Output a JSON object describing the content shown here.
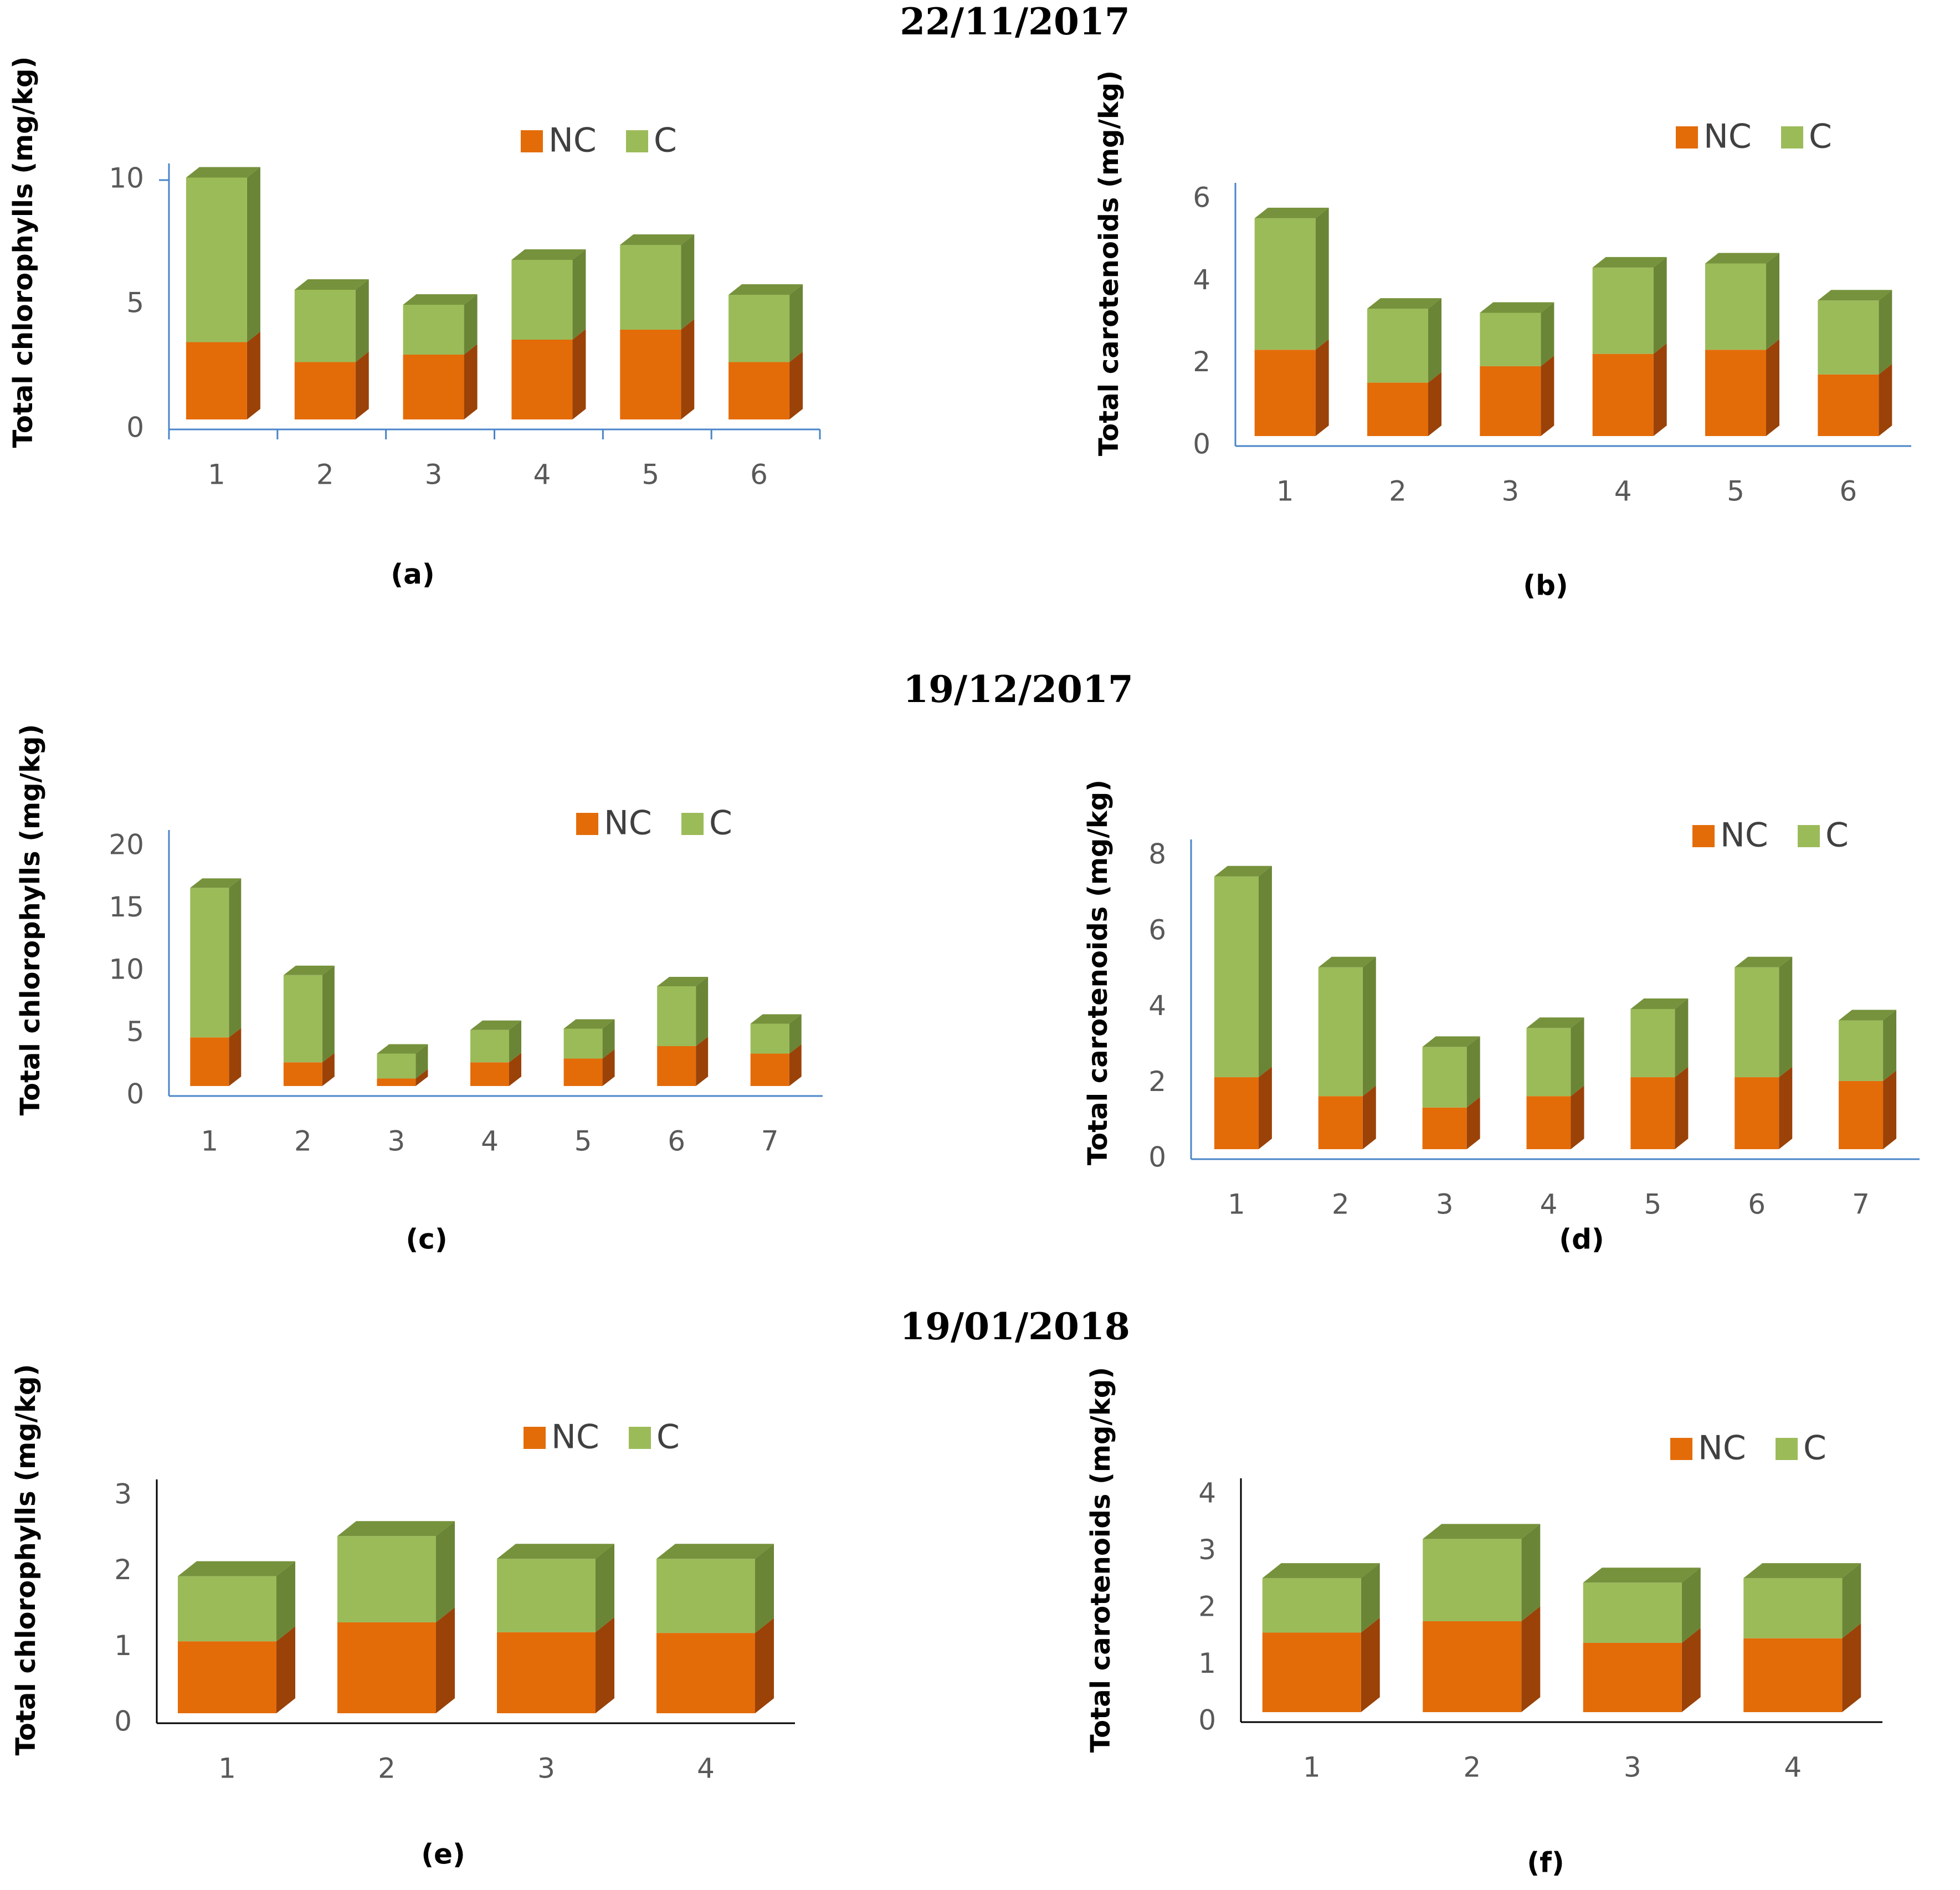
{
  "dates": [
    "22/11/2017",
    "19/12/2017",
    "19/01/2018"
  ],
  "colors": {
    "nc_front": "#E36C09",
    "nc_top": "#C0580A",
    "nc_side": "#9A4208",
    "c_front": "#9BBB59",
    "c_top": "#76923C",
    "c_side": "#6A8536",
    "axis_blue": "#4A86C8",
    "axis_black": "#000000"
  },
  "chart_data": [
    {
      "panel": "(a)",
      "type": "bar",
      "stacked": true,
      "ylabel": "Total chlorophylls (mg/kg)",
      "categories": [
        "1",
        "2",
        "3",
        "4",
        "5",
        "6"
      ],
      "ylim": [
        0,
        10
      ],
      "yticks": [
        "0",
        "5",
        "10"
      ],
      "series": [
        {
          "name": "NC",
          "values": [
            3.1,
            2.3,
            2.6,
            3.2,
            3.6,
            2.3
          ]
        },
        {
          "name": "C",
          "values": [
            6.6,
            2.9,
            2.0,
            3.2,
            3.4,
            2.7
          ]
        }
      ]
    },
    {
      "panel": "(b)",
      "type": "bar",
      "stacked": true,
      "ylabel": "Total carotenoids (mg/kg)",
      "categories": [
        "1",
        "2",
        "3",
        "4",
        "5",
        "6"
      ],
      "ylim": [
        0,
        6
      ],
      "yticks": [
        "0",
        "2",
        "4",
        "6"
      ],
      "series": [
        {
          "name": "NC",
          "values": [
            2.1,
            1.3,
            1.7,
            2.0,
            2.1,
            1.5
          ]
        },
        {
          "name": "C",
          "values": [
            3.2,
            1.8,
            1.3,
            2.1,
            2.1,
            1.8
          ]
        }
      ]
    },
    {
      "panel": "(c)",
      "type": "bar",
      "stacked": true,
      "ylabel": "Total chlorophylls (mg/kg)",
      "categories": [
        "1",
        "2",
        "3",
        "4",
        "5",
        "6",
        "7"
      ],
      "ylim": [
        0,
        20
      ],
      "yticks": [
        "0",
        "5",
        "10",
        "15",
        "20"
      ],
      "series": [
        {
          "name": "NC",
          "values": [
            3.9,
            1.9,
            0.6,
            1.9,
            2.2,
            3.2,
            2.6
          ]
        },
        {
          "name": "C",
          "values": [
            12.0,
            7.0,
            2.0,
            2.6,
            2.4,
            4.8,
            2.4
          ]
        }
      ]
    },
    {
      "panel": "(d)",
      "type": "bar",
      "stacked": true,
      "ylabel": "Total carotenoids (mg/kg)",
      "categories": [
        "1",
        "2",
        "3",
        "4",
        "5",
        "6",
        "7"
      ],
      "ylim": [
        0,
        8
      ],
      "yticks": [
        "0",
        "2",
        "4",
        "6",
        "8"
      ],
      "series": [
        {
          "name": "NC",
          "values": [
            1.9,
            1.4,
            1.1,
            1.4,
            1.9,
            1.9,
            1.8
          ]
        },
        {
          "name": "C",
          "values": [
            5.3,
            3.4,
            1.6,
            1.8,
            1.8,
            2.9,
            1.6
          ]
        }
      ]
    },
    {
      "panel": "(e)",
      "type": "bar",
      "stacked": true,
      "ylabel": "Total chlorophylls (mg/kg)",
      "categories": [
        "1",
        "2",
        "3",
        "4"
      ],
      "ylim": [
        0,
        3
      ],
      "yticks": [
        "0",
        "1",
        "2",
        "3"
      ],
      "series": [
        {
          "name": "NC",
          "values": [
            0.95,
            1.2,
            1.07,
            1.06
          ]
        },
        {
          "name": "C",
          "values": [
            0.86,
            1.14,
            0.97,
            0.98
          ]
        }
      ]
    },
    {
      "panel": "(f)",
      "type": "bar",
      "stacked": true,
      "ylabel": "Total carotenoids (mg/kg)",
      "categories": [
        "1",
        "2",
        "3",
        "4"
      ],
      "ylim": [
        0,
        4
      ],
      "yticks": [
        "0",
        "1",
        "2",
        "3",
        "4"
      ],
      "series": [
        {
          "name": "NC",
          "values": [
            1.4,
            1.6,
            1.22,
            1.3
          ]
        },
        {
          "name": "C",
          "values": [
            0.96,
            1.45,
            1.06,
            1.06
          ]
        }
      ]
    }
  ]
}
